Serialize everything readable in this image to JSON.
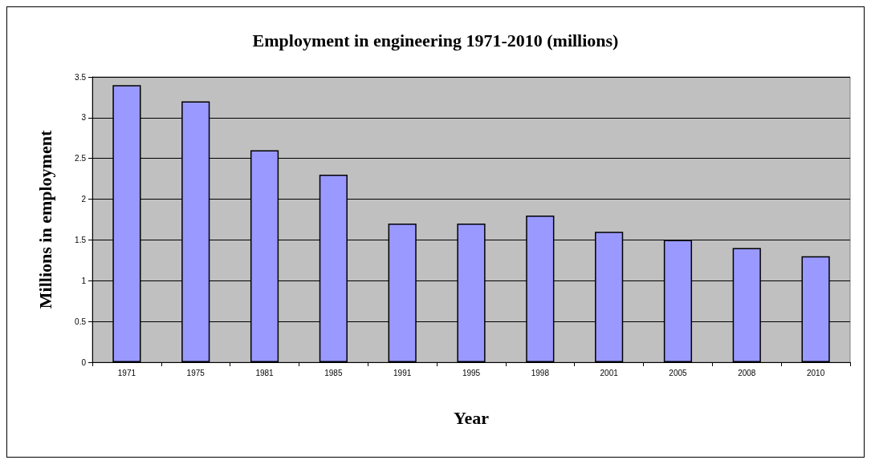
{
  "chart_data": {
    "type": "bar",
    "title": "Employment in engineering 1971-2010 (millions)",
    "xlabel": "Year",
    "ylabel": "Millions in employment",
    "categories": [
      "1971",
      "1975",
      "1981",
      "1985",
      "1991",
      "1995",
      "1998",
      "2001",
      "2005",
      "2008",
      "2010"
    ],
    "values": [
      3.4,
      3.2,
      2.6,
      2.3,
      1.7,
      1.7,
      1.8,
      1.6,
      1.5,
      1.4,
      1.3
    ],
    "color": "#9999ff",
    "ylim": [
      0,
      3.5
    ],
    "yticks": [
      0,
      0.5,
      1,
      1.5,
      2,
      2.5,
      3,
      3.5
    ],
    "grid": "y"
  }
}
